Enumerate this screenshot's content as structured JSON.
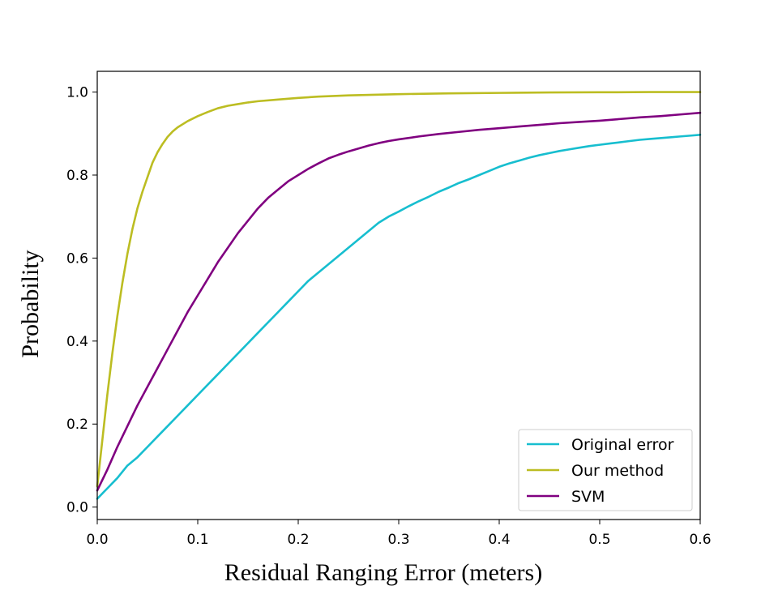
{
  "chart_data": {
    "type": "line",
    "title": "",
    "xlabel": "Residual Ranging Error (meters)",
    "ylabel": "Probability",
    "xlim": [
      0,
      0.6
    ],
    "ylim": [
      -0.03,
      1.05
    ],
    "xticks": [
      0.0,
      0.1,
      0.2,
      0.3,
      0.4,
      0.5,
      0.6
    ],
    "xtick_labels": [
      "0.0",
      "0.1",
      "0.2",
      "0.3",
      "0.4",
      "0.5",
      "0.6"
    ],
    "yticks": [
      0.0,
      0.2,
      0.4,
      0.6,
      0.8,
      1.0
    ],
    "ytick_labels": [
      "0.0",
      "0.2",
      "0.4",
      "0.6",
      "0.8",
      "1.0"
    ],
    "grid": false,
    "legend_position": "lower-right",
    "series": [
      {
        "name": "Original error",
        "color": "#17becf",
        "x": [
          0.0,
          0.01,
          0.02,
          0.03,
          0.04,
          0.05,
          0.06,
          0.07,
          0.08,
          0.09,
          0.1,
          0.11,
          0.12,
          0.13,
          0.14,
          0.15,
          0.16,
          0.17,
          0.18,
          0.19,
          0.2,
          0.21,
          0.22,
          0.23,
          0.24,
          0.25,
          0.26,
          0.27,
          0.28,
          0.29,
          0.3,
          0.31,
          0.32,
          0.33,
          0.34,
          0.35,
          0.36,
          0.37,
          0.38,
          0.39,
          0.4,
          0.41,
          0.42,
          0.43,
          0.44,
          0.45,
          0.46,
          0.47,
          0.48,
          0.49,
          0.5,
          0.51,
          0.52,
          0.53,
          0.54,
          0.55,
          0.56,
          0.57,
          0.58,
          0.59,
          0.6
        ],
        "y": [
          0.02,
          0.045,
          0.07,
          0.1,
          0.12,
          0.145,
          0.17,
          0.195,
          0.22,
          0.245,
          0.27,
          0.295,
          0.32,
          0.345,
          0.37,
          0.395,
          0.42,
          0.445,
          0.47,
          0.495,
          0.52,
          0.545,
          0.565,
          0.585,
          0.605,
          0.625,
          0.645,
          0.665,
          0.685,
          0.7,
          0.712,
          0.725,
          0.737,
          0.748,
          0.76,
          0.77,
          0.781,
          0.79,
          0.8,
          0.81,
          0.82,
          0.828,
          0.835,
          0.842,
          0.848,
          0.853,
          0.858,
          0.862,
          0.866,
          0.87,
          0.873,
          0.876,
          0.879,
          0.882,
          0.885,
          0.887,
          0.889,
          0.891,
          0.893,
          0.895,
          0.897
        ]
      },
      {
        "name": "Our method",
        "color": "#bcbd22",
        "x": [
          0.0,
          0.005,
          0.01,
          0.015,
          0.02,
          0.025,
          0.03,
          0.035,
          0.04,
          0.045,
          0.05,
          0.055,
          0.06,
          0.065,
          0.07,
          0.075,
          0.08,
          0.09,
          0.1,
          0.11,
          0.12,
          0.13,
          0.14,
          0.15,
          0.16,
          0.18,
          0.2,
          0.22,
          0.25,
          0.3,
          0.35,
          0.4,
          0.45,
          0.5,
          0.55,
          0.6
        ],
        "y": [
          0.05,
          0.16,
          0.27,
          0.37,
          0.46,
          0.54,
          0.61,
          0.67,
          0.72,
          0.76,
          0.795,
          0.83,
          0.855,
          0.875,
          0.892,
          0.905,
          0.915,
          0.93,
          0.942,
          0.952,
          0.961,
          0.967,
          0.971,
          0.975,
          0.978,
          0.982,
          0.986,
          0.989,
          0.992,
          0.995,
          0.997,
          0.998,
          0.999,
          0.9995,
          1.0,
          1.0
        ]
      },
      {
        "name": "SVM",
        "color": "#800080",
        "x": [
          0.0,
          0.01,
          0.02,
          0.03,
          0.04,
          0.05,
          0.06,
          0.07,
          0.08,
          0.09,
          0.1,
          0.11,
          0.12,
          0.13,
          0.14,
          0.15,
          0.16,
          0.17,
          0.18,
          0.19,
          0.2,
          0.21,
          0.22,
          0.23,
          0.24,
          0.25,
          0.26,
          0.27,
          0.28,
          0.29,
          0.3,
          0.32,
          0.34,
          0.36,
          0.38,
          0.4,
          0.42,
          0.44,
          0.46,
          0.48,
          0.5,
          0.52,
          0.54,
          0.56,
          0.58,
          0.6
        ],
        "y": [
          0.04,
          0.09,
          0.145,
          0.195,
          0.245,
          0.29,
          0.335,
          0.38,
          0.425,
          0.47,
          0.51,
          0.55,
          0.59,
          0.625,
          0.66,
          0.69,
          0.72,
          0.745,
          0.765,
          0.785,
          0.8,
          0.815,
          0.828,
          0.84,
          0.849,
          0.857,
          0.864,
          0.871,
          0.877,
          0.882,
          0.886,
          0.893,
          0.899,
          0.904,
          0.909,
          0.913,
          0.917,
          0.921,
          0.925,
          0.928,
          0.931,
          0.935,
          0.939,
          0.942,
          0.946,
          0.95
        ]
      }
    ]
  }
}
